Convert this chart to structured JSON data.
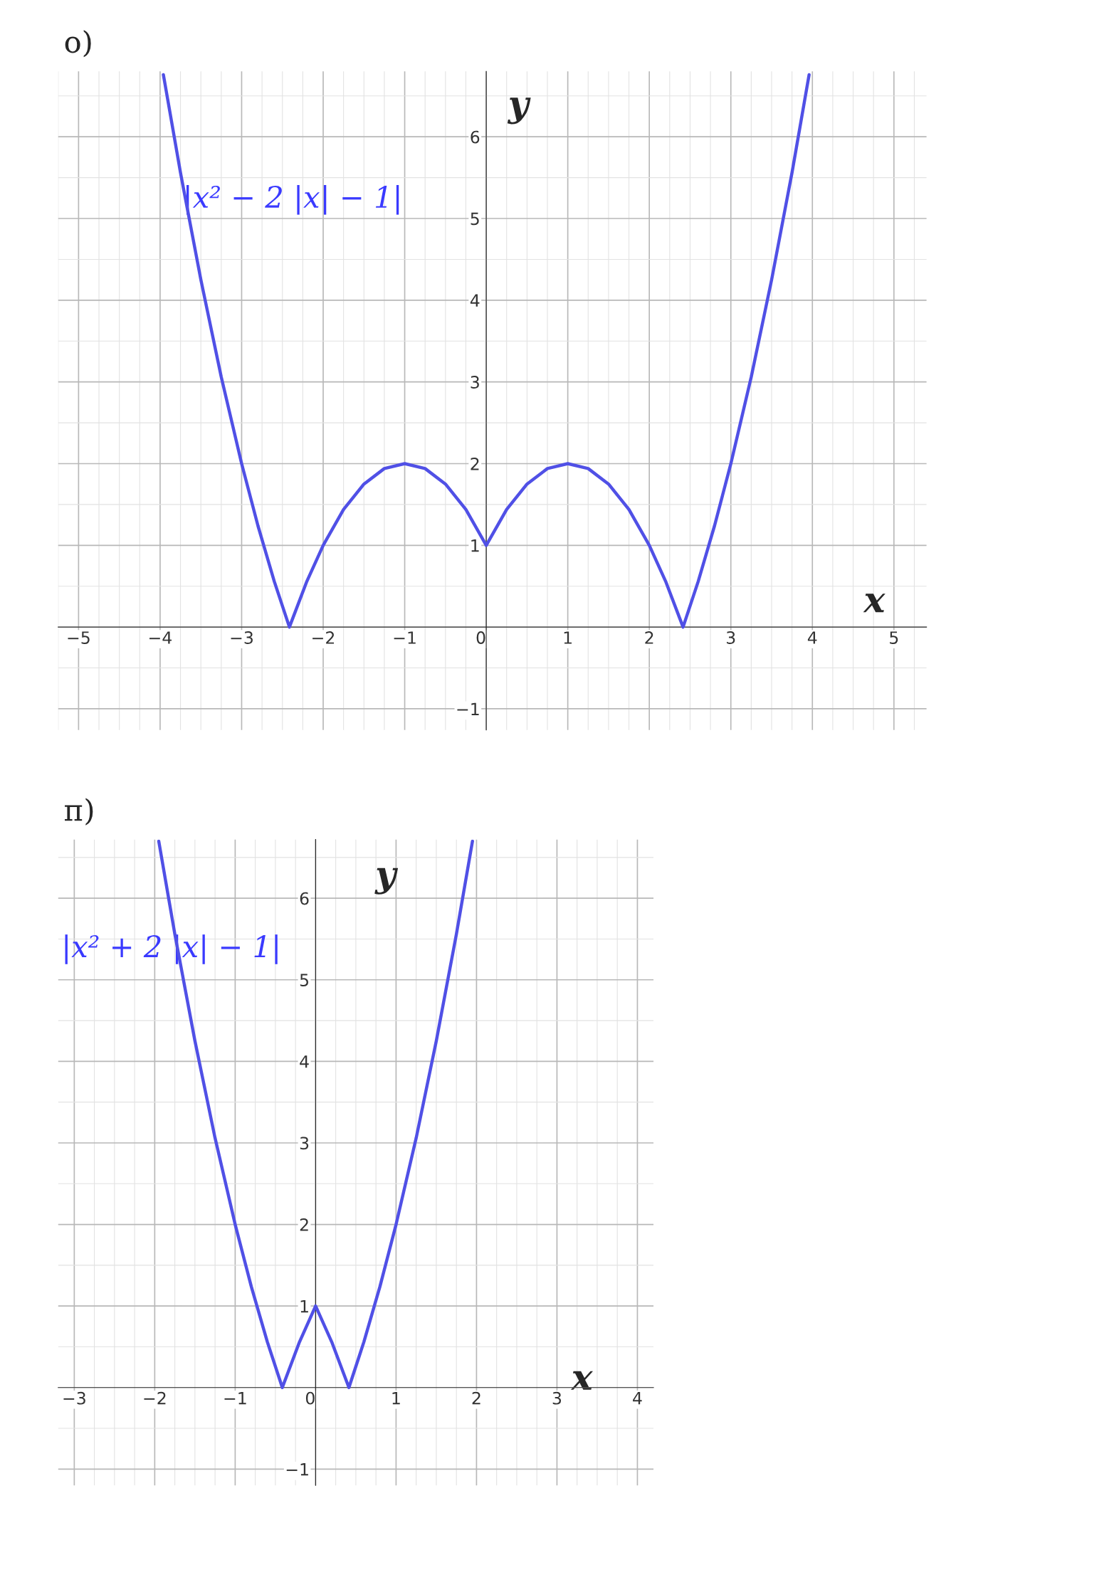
{
  "chart_data": [
    {
      "type": "line",
      "title": "о)",
      "xlabel": "x",
      "ylabel": "y",
      "annotations": [
        "|x² − 2 |x| − 1|"
      ],
      "x": [
        -3.96,
        -3.75,
        -3.5,
        -3.25,
        -3,
        -2.8,
        -2.6,
        -2.414,
        -2.2,
        -2,
        -1.75,
        -1.5,
        -1.25,
        -1,
        -0.75,
        -0.5,
        -0.25,
        0,
        0.25,
        0.5,
        0.75,
        1,
        1.25,
        1.5,
        1.75,
        2,
        2.2,
        2.414,
        2.6,
        2.8,
        3,
        3.25,
        3.5,
        3.75,
        3.96
      ],
      "series": [
        {
          "color": "#5050e6",
          "values": [
            6.76,
            5.56,
            4.25,
            3.06,
            2,
            1.24,
            0.56,
            0,
            0.56,
            1,
            1.44,
            1.75,
            1.94,
            2,
            1.94,
            1.75,
            1.44,
            1,
            1.44,
            1.75,
            1.94,
            2,
            1.94,
            1.75,
            1.44,
            1,
            0.56,
            0,
            0.56,
            1.24,
            2,
            3.06,
            4.25,
            5.56,
            6.76
          ]
        }
      ],
      "xlim": [
        -5.25,
        5.4
      ],
      "ylim": [
        -1.26,
        6.8
      ],
      "xticks": [
        -5,
        -4,
        -3,
        -2,
        -1,
        0,
        1,
        2,
        3,
        4,
        5
      ],
      "yticks": [
        -1,
        1,
        2,
        3,
        4,
        5,
        6
      ],
      "grid": true,
      "marker": "none",
      "line_style": "solid"
    },
    {
      "type": "line",
      "title": "п)",
      "xlabel": "x",
      "ylabel": "y",
      "annotations": [
        "|x² + 2 |x| − 1|"
      ],
      "x": [
        -1.95,
        -1.75,
        -1.5,
        -1.25,
        -1,
        -0.8,
        -0.6,
        -0.414,
        -0.2,
        0,
        0.2,
        0.414,
        0.6,
        0.8,
        1,
        1.25,
        1.5,
        1.75,
        1.95
      ],
      "series": [
        {
          "color": "#5050e6",
          "values": [
            6.7,
            5.56,
            4.25,
            3.06,
            2,
            1.24,
            0.56,
            0,
            0.56,
            1,
            0.56,
            0,
            0.56,
            1.24,
            2,
            3.06,
            4.25,
            5.56,
            6.7
          ]
        }
      ],
      "xlim": [
        -3.2,
        4.2
      ],
      "ylim": [
        -1.2,
        6.72
      ],
      "xticks": [
        -3,
        -2,
        -1,
        0,
        1,
        2,
        3,
        4
      ],
      "yticks": [
        -1,
        1,
        2,
        3,
        4,
        5,
        6
      ],
      "grid": true,
      "marker": "none",
      "line_style": "solid"
    }
  ]
}
